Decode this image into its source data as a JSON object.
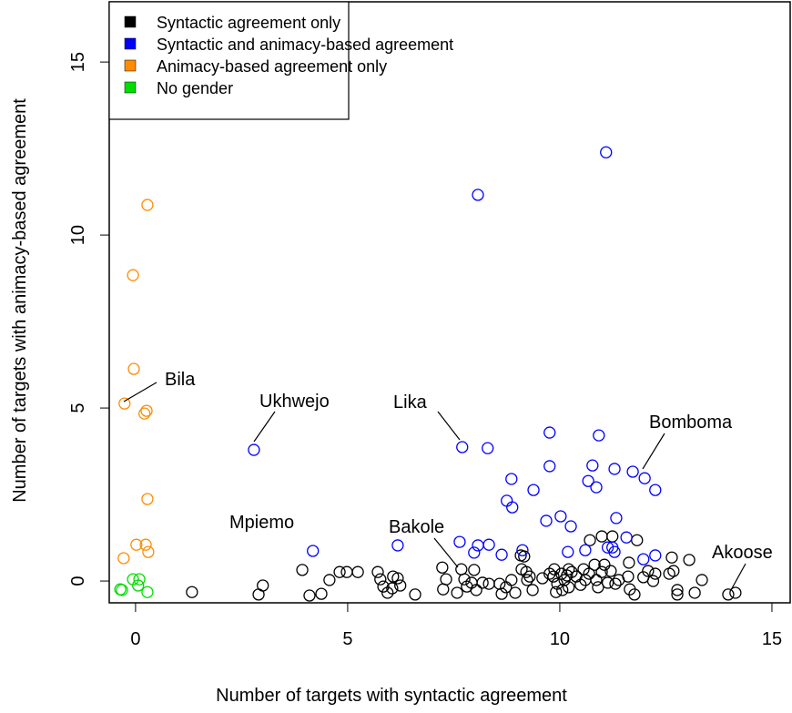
{
  "chart_data": {
    "type": "scatter",
    "x_label": "Number of targets with syntactic agreement",
    "y_label": "Number of targets with animacy-based agreement",
    "xlim": [
      -0.62,
      15.43
    ],
    "ylim": [
      -0.63,
      16.74
    ],
    "xticks": [
      0,
      5,
      10,
      15
    ],
    "yticks": [
      0,
      5,
      10,
      15
    ],
    "legend": "topleft",
    "annotations": [
      "Bila",
      "Ukhwejo",
      "Lika",
      "Bomboma",
      "Mpiemo",
      "Bakole",
      "Akoose"
    ],
    "series": [
      {
        "name": "Syntactic agreement only",
        "color": "#000000",
        "x": [
          1.33,
          2.9,
          3.0,
          3.93,
          4.1,
          4.38,
          4.57,
          4.81,
          4.98,
          5.24,
          5.71,
          5.77,
          5.84,
          5.94,
          6.07,
          6.18,
          6.05,
          6.24,
          6.59,
          7.23,
          7.32,
          7.25,
          7.58,
          7.68,
          7.75,
          7.81,
          7.92,
          7.98,
          8.03,
          8.18,
          8.33,
          8.58,
          8.63,
          8.73,
          8.86,
          8.95,
          9.08,
          9.16,
          9.1,
          9.21,
          9.23,
          9.29,
          9.36,
          9.59,
          9.76,
          9.85,
          9.87,
          9.94,
          9.91,
          10.04,
          10.11,
          10.06,
          10.17,
          10.21,
          10.21,
          10.28,
          10.39,
          10.49,
          10.56,
          10.6,
          10.69,
          10.71,
          10.82,
          10.86,
          10.9,
          10.99,
          10.99,
          11.05,
          11.13,
          11.2,
          11.24,
          11.31,
          11.39,
          11.61,
          11.63,
          11.65,
          11.76,
          11.82,
          11.97,
          12.08,
          12.2,
          12.25,
          12.58,
          12.64,
          12.68,
          12.77,
          12.77,
          13.05,
          13.18,
          13.35,
          13.97,
          14.14
        ],
        "values": [
          -0.32,
          -0.39,
          -0.13,
          0.32,
          -0.42,
          -0.37,
          0.03,
          0.26,
          0.26,
          0.26,
          0.26,
          0.05,
          -0.16,
          -0.34,
          0.13,
          0.08,
          -0.21,
          -0.13,
          -0.39,
          0.39,
          0.05,
          -0.24,
          -0.34,
          0.34,
          0.05,
          -0.16,
          -0.05,
          0.32,
          -0.26,
          -0.05,
          -0.08,
          -0.08,
          -0.37,
          -0.18,
          0.03,
          -0.34,
          0.74,
          0.71,
          0.34,
          0.26,
          0.03,
          0.13,
          -0.26,
          0.08,
          0.21,
          0.13,
          0.34,
          -0.08,
          -0.32,
          0.21,
          0.03,
          -0.26,
          0.16,
          0.34,
          -0.18,
          0.26,
          0.13,
          -0.11,
          0.34,
          0.03,
          0.21,
          1.18,
          0.47,
          0.03,
          -0.18,
          1.29,
          0.26,
          0.47,
          -0.05,
          0.29,
          1.29,
          -0.08,
          0.03,
          0.13,
          0.53,
          -0.24,
          -0.39,
          1.18,
          0.11,
          0.29,
          0.0,
          0.21,
          0.21,
          0.68,
          0.29,
          -0.26,
          -0.39,
          0.61,
          -0.34,
          0.03,
          -0.39,
          -0.34
        ]
      },
      {
        "name": "Syntactic and animacy-based agreement",
        "color": "#0000ff",
        "x": [
          11.09,
          8.07,
          2.79,
          7.7,
          9.76,
          10.92,
          8.3,
          9.76,
          8.86,
          10.77,
          11.29,
          11.72,
          12.0,
          10.67,
          10.86,
          12.25,
          9.38,
          8.75,
          8.88,
          10.02,
          10.26,
          9.68,
          11.33,
          11.57,
          11.24,
          11.13,
          10.6,
          9.12,
          8.33,
          8.07,
          7.98,
          7.64,
          4.18,
          6.18,
          10.19,
          11.29,
          11.97,
          12.25,
          8.63
        ],
        "values": [
          12.39,
          11.16,
          3.79,
          3.87,
          4.29,
          4.21,
          3.84,
          3.32,
          2.95,
          3.34,
          3.24,
          3.16,
          2.97,
          2.89,
          2.71,
          2.63,
          2.63,
          2.32,
          2.13,
          1.87,
          1.58,
          1.74,
          1.82,
          1.26,
          0.97,
          0.97,
          0.89,
          0.89,
          1.05,
          1.03,
          0.82,
          1.13,
          0.87,
          1.03,
          0.84,
          0.84,
          0.63,
          0.74,
          0.76
        ]
      },
      {
        "name": "Animacy-based agreement only",
        "color": "#ff8c00",
        "x": [
          0.28,
          -0.06,
          -0.04,
          -0.26,
          0.21,
          0.26,
          0.28,
          0.02,
          0.24,
          0.3,
          -0.28
        ],
        "values": [
          10.87,
          8.84,
          6.13,
          5.13,
          4.84,
          4.92,
          2.37,
          1.05,
          1.05,
          0.84,
          0.66
        ]
      },
      {
        "name": "No gender",
        "color": "#00dd00",
        "x": [
          -0.36,
          -0.32,
          -0.06,
          0.09,
          0.06,
          0.28
        ],
        "values": [
          -0.24,
          -0.26,
          0.05,
          0.05,
          -0.13,
          -0.32
        ]
      }
    ]
  }
}
